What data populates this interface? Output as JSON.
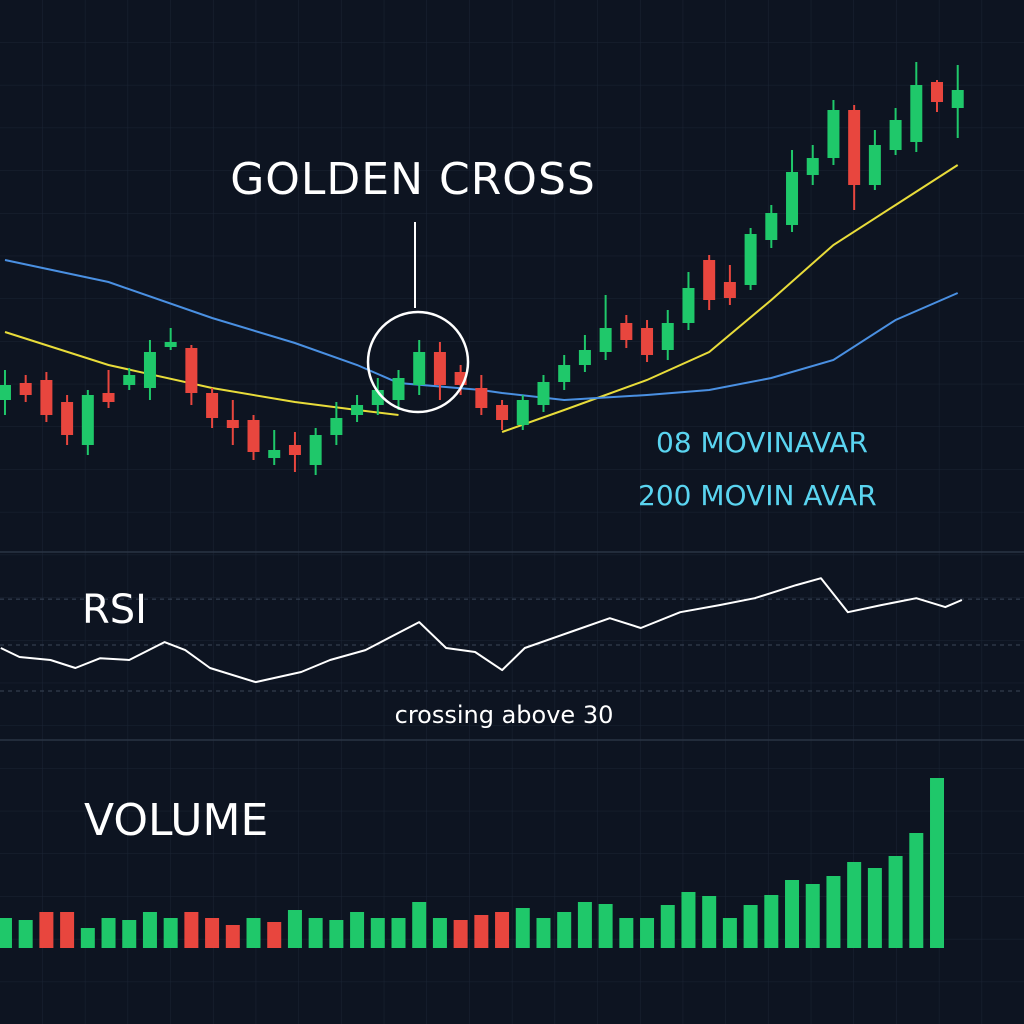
{
  "chart_data": [
    {
      "type": "candlestick",
      "annotation": "GOLDEN CROSS",
      "x": [
        1,
        2,
        3,
        4,
        5,
        6,
        7,
        8,
        9,
        10,
        11,
        12,
        13,
        14,
        15,
        16,
        17,
        18,
        19,
        20,
        21,
        22,
        23,
        24,
        25,
        26,
        27,
        28,
        29,
        30,
        31,
        32,
        33,
        34,
        35,
        36,
        37,
        38,
        39,
        40,
        41,
        42,
        43,
        44,
        45,
        46,
        47
      ],
      "open": [
        600,
        617,
        620,
        598,
        555,
        607,
        615,
        612,
        653,
        652,
        607,
        580,
        580,
        542,
        555,
        535,
        565,
        585,
        595,
        600,
        615,
        648,
        628,
        612,
        595,
        575,
        595,
        618,
        635,
        648,
        677,
        672,
        650,
        677,
        740,
        718,
        715,
        760,
        775,
        825,
        842,
        890,
        815,
        850,
        858,
        918,
        892
      ],
      "close": [
        615,
        605,
        585,
        565,
        605,
        598,
        625,
        648,
        658,
        607,
        582,
        572,
        548,
        550,
        545,
        565,
        582,
        595,
        610,
        622,
        648,
        615,
        615,
        592,
        580,
        600,
        618,
        635,
        650,
        672,
        660,
        645,
        677,
        712,
        700,
        702,
        766,
        787,
        828,
        842,
        890,
        815,
        855,
        880,
        915,
        898,
        910
      ],
      "high": [
        630,
        625,
        628,
        605,
        610,
        630,
        632,
        660,
        672,
        655,
        612,
        600,
        585,
        570,
        568,
        572,
        598,
        605,
        622,
        630,
        660,
        658,
        635,
        625,
        600,
        605,
        625,
        645,
        665,
        705,
        685,
        680,
        690,
        728,
        745,
        735,
        772,
        795,
        850,
        855,
        900,
        895,
        870,
        892,
        938,
        920,
        935
      ],
      "low": [
        585,
        598,
        578,
        555,
        545,
        592,
        610,
        600,
        650,
        595,
        572,
        555,
        540,
        535,
        528,
        525,
        555,
        578,
        585,
        590,
        605,
        600,
        605,
        585,
        570,
        570,
        588,
        610,
        628,
        640,
        652,
        638,
        640,
        670,
        690,
        695,
        710,
        752,
        768,
        815,
        835,
        790,
        810,
        845,
        848,
        888,
        862
      ],
      "up_color": "#1fc86a",
      "down_color": "#e8463e",
      "xlim": [
        0.76,
        50.2
      ],
      "ylim": [
        440,
        1000
      ],
      "grid": true,
      "legend_color": "#5ad4f0",
      "series": [
        {
          "name": "08 MOVINAVAR",
          "color": "#e8dc3a",
          "x": [
            1,
            6,
            11,
            15,
            18,
            20,
            24,
            25,
            28,
            32,
            35,
            38,
            41,
            44,
            47
          ],
          "values": [
            668,
            635,
            612,
            598,
            590,
            585,
            null,
            568,
            590,
            620,
            648,
            700,
            755,
            795,
            835
          ]
        },
        {
          "name": "200 MOVIN AVAR",
          "color": "#4a90e2",
          "x": [
            1,
            6,
            11,
            15,
            18,
            20,
            24,
            25,
            28,
            32,
            35,
            38,
            41,
            44,
            47
          ],
          "values": [
            740,
            718,
            682,
            657,
            635,
            617,
            610,
            607,
            600,
            605,
            610,
            622,
            640,
            680,
            707
          ]
        }
      ]
    },
    {
      "type": "line",
      "title": "RSI",
      "annotation": "crossing above 30",
      "color": "#ffffff",
      "x": [
        0.8,
        1.7,
        3.2,
        4.4,
        5.6,
        7.0,
        8.7,
        9.7,
        10.9,
        13.1,
        15.3,
        16.7,
        18.4,
        21.0,
        22.3,
        23.7,
        25.0,
        26.1,
        28.3,
        30.2,
        31.7,
        33.6,
        35.5,
        37.2,
        39.2,
        40.4,
        41.7,
        43.3,
        45.0,
        46.4,
        47.2
      ],
      "values": [
        48.7,
        44.8,
        43.5,
        40.0,
        44.3,
        43.5,
        51.3,
        47.8,
        40.0,
        33.9,
        38.3,
        43.5,
        47.8,
        60.0,
        48.7,
        47.0,
        39.1,
        48.7,
        55.7,
        61.7,
        57.4,
        64.3,
        67.4,
        70.4,
        76.1,
        79.1,
        64.3,
        67.4,
        70.4,
        66.5,
        69.6
      ],
      "levels": [
        30,
        50,
        70
      ],
      "xlim": [
        0.76,
        50.2
      ],
      "ylim": [
        8.7,
        87
      ]
    },
    {
      "type": "bar",
      "title": "VOLUME",
      "x": [
        1,
        2,
        3,
        4,
        5,
        6,
        7,
        8,
        9,
        10,
        11,
        12,
        13,
        14,
        15,
        16,
        17,
        18,
        19,
        20,
        21,
        22,
        23,
        24,
        25,
        26,
        27,
        28,
        29,
        30,
        31,
        32,
        33,
        34,
        35,
        36,
        37,
        38,
        39,
        40,
        41,
        42,
        43,
        44,
        45,
        46
      ],
      "values": [
        30,
        28,
        36,
        36,
        20,
        30,
        28,
        36,
        30,
        36,
        30,
        23,
        30,
        26,
        38,
        30,
        28,
        36,
        30,
        30,
        46,
        30,
        28,
        33,
        36,
        40,
        30,
        36,
        46,
        44,
        30,
        30,
        43,
        56,
        52,
        30,
        43,
        53,
        68,
        64,
        72,
        86,
        80,
        92,
        115,
        170
      ],
      "colors": [
        "#1fc86a",
        "#1fc86a",
        "#e8463e",
        "#e8463e",
        "#1fc86a",
        "#1fc86a",
        "#1fc86a",
        "#1fc86a",
        "#1fc86a",
        "#e8463e",
        "#e8463e",
        "#e8463e",
        "#1fc86a",
        "#e8463e",
        "#1fc86a",
        "#1fc86a",
        "#1fc86a",
        "#1fc86a",
        "#1fc86a",
        "#1fc86a",
        "#1fc86a",
        "#1fc86a",
        "#e8463e",
        "#e8463e",
        "#e8463e",
        "#1fc86a",
        "#1fc86a",
        "#1fc86a",
        "#1fc86a",
        "#1fc86a",
        "#1fc86a",
        "#1fc86a",
        "#1fc86a",
        "#1fc86a",
        "#1fc86a",
        "#1fc86a",
        "#1fc86a",
        "#1fc86a",
        "#1fc86a",
        "#1fc86a",
        "#1fc86a",
        "#1fc86a",
        "#1fc86a",
        "#1fc86a",
        "#1fc86a",
        "#1fc86a"
      ],
      "xlim": [
        0.76,
        50.2
      ],
      "ylim": [
        0,
        190
      ]
    }
  ]
}
